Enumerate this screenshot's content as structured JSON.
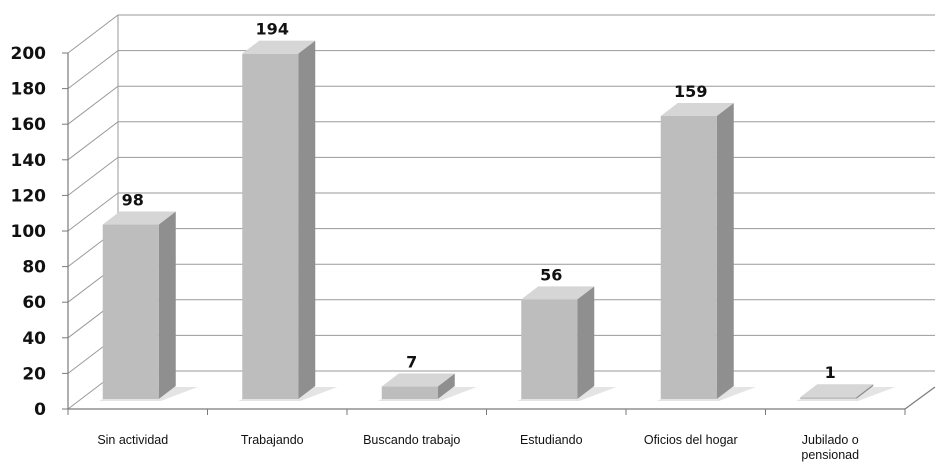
{
  "chart_data": {
    "type": "bar",
    "style": "3d-column",
    "categories": [
      "Sin actividad",
      "Trabajando",
      "Buscando trabajo",
      "Estudiando",
      "Oficios del hogar",
      "Jubilado o pensionad"
    ],
    "values": [
      98,
      194,
      7,
      56,
      159,
      1
    ],
    "data_labels": [
      "98",
      "194",
      "7",
      "56",
      "159",
      "1"
    ],
    "title": "",
    "xlabel": "",
    "ylabel": "",
    "ylim": [
      0,
      200
    ],
    "yticks": [
      0,
      20,
      40,
      60,
      80,
      100,
      120,
      140,
      160,
      180,
      200
    ],
    "grid": true,
    "legend": "none",
    "colors": {
      "bar_front": "#bdbdbd",
      "bar_side": "#8f8f8f",
      "bar_top": "#d6d6d6",
      "grid": "#9a9a9a",
      "axis": "#7a7a7a"
    }
  }
}
